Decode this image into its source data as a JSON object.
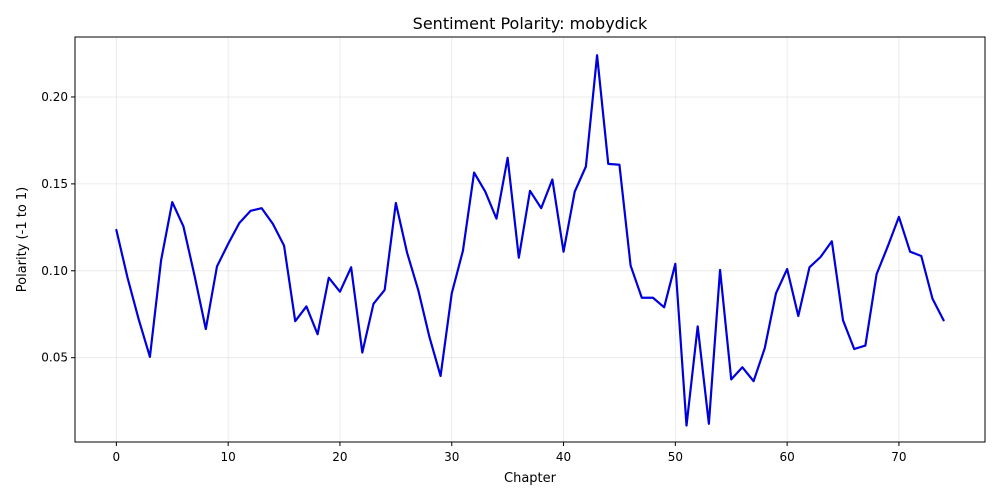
{
  "chart_data": {
    "type": "line",
    "title": "Sentiment Polarity: mobydick",
    "xlabel": "Chapter",
    "ylabel": "Polarity (-1 to 1)",
    "xlim": [
      -3.7,
      77.7
    ],
    "ylim": [
      0.0015,
      0.2345
    ],
    "xticks": [
      0,
      10,
      20,
      30,
      40,
      50,
      60,
      70
    ],
    "yticks": [
      0.05,
      0.1,
      0.15,
      0.2
    ],
    "ytick_labels": [
      "0.05",
      "0.10",
      "0.15",
      "0.20"
    ],
    "grid": true,
    "line_color": "#0000dd",
    "series": [
      {
        "x": [
          0,
          1,
          2,
          3,
          4,
          5,
          6,
          7,
          8,
          9,
          10,
          11,
          12,
          13,
          14,
          15,
          16,
          17,
          18,
          19,
          20,
          21,
          22,
          23,
          24,
          25,
          26,
          27,
          28,
          29,
          30,
          31,
          32,
          33,
          34,
          35,
          36,
          37,
          38,
          39,
          40,
          41,
          42,
          43,
          44,
          45,
          46,
          47,
          48,
          49,
          50,
          51,
          52,
          53,
          54,
          55,
          56,
          57,
          58,
          59,
          60,
          61,
          62,
          63,
          64,
          65,
          66,
          67,
          68,
          69,
          70,
          71,
          72,
          73,
          74
        ],
        "y": [
          0.1235,
          0.096,
          0.072,
          0.0505,
          0.106,
          0.1395,
          0.1255,
          0.097,
          0.0665,
          0.1025,
          0.1155,
          0.1275,
          0.1345,
          0.136,
          0.127,
          0.1145,
          0.071,
          0.0795,
          0.0635,
          0.096,
          0.088,
          0.102,
          0.053,
          0.081,
          0.089,
          0.139,
          0.1105,
          0.089,
          0.062,
          0.0395,
          0.087,
          0.1115,
          0.1565,
          0.1455,
          0.13,
          0.165,
          0.1075,
          0.146,
          0.136,
          0.1525,
          0.111,
          0.1455,
          0.16,
          0.224,
          0.1615,
          0.161,
          0.103,
          0.0845,
          0.0845,
          0.079,
          0.104,
          0.011,
          0.068,
          0.012,
          0.1005,
          0.0375,
          0.0445,
          0.0365,
          0.0555,
          0.087,
          0.101,
          0.074,
          0.102,
          0.108,
          0.117,
          0.0715,
          0.055,
          0.057,
          0.098,
          0.114,
          0.131,
          0.111,
          0.1085,
          0.084,
          0.0715
        ]
      }
    ]
  }
}
